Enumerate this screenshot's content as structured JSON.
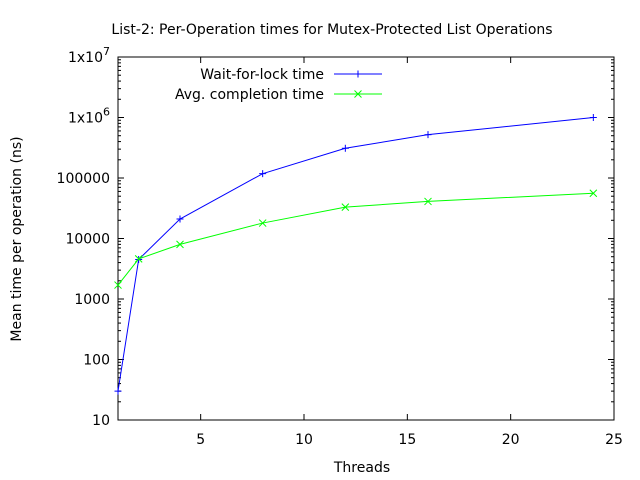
{
  "chart_data": {
    "type": "line",
    "title": "List-2: Per-Operation times for Mutex-Protected List Operations",
    "xlabel": "Threads",
    "ylabel": "Mean time per operation (ns)",
    "xlim": [
      1,
      25
    ],
    "ylim": [
      10,
      10000000
    ],
    "yscale": "log",
    "grid": false,
    "legend_position": "top-left",
    "x_ticks": [
      5,
      10,
      15,
      20,
      25
    ],
    "y_ticks": [
      {
        "value": 10,
        "label": "10"
      },
      {
        "value": 100,
        "label": "100"
      },
      {
        "value": 1000,
        "label": "1000"
      },
      {
        "value": 10000,
        "label": "10000"
      },
      {
        "value": 100000,
        "label": "100000"
      },
      {
        "value": 1000000,
        "base": "1x10",
        "exp": "6"
      },
      {
        "value": 10000000,
        "base": "1x10",
        "exp": "7"
      }
    ],
    "series": [
      {
        "name": "Wait-for-lock time",
        "color": "#0000ff",
        "marker": "plus",
        "points": [
          [
            1,
            30
          ],
          [
            2,
            4500
          ],
          [
            4,
            21000
          ],
          [
            8,
            118000
          ],
          [
            12,
            310000
          ],
          [
            16,
            520000
          ],
          [
            24,
            1000000
          ]
        ]
      },
      {
        "name": "Avg. completion time",
        "color": "#00ff00",
        "marker": "cross",
        "points": [
          [
            1,
            1700
          ],
          [
            2,
            4600
          ],
          [
            4,
            8000
          ],
          [
            8,
            18000
          ],
          [
            12,
            33000
          ],
          [
            16,
            41000
          ],
          [
            24,
            56000
          ]
        ]
      }
    ]
  }
}
